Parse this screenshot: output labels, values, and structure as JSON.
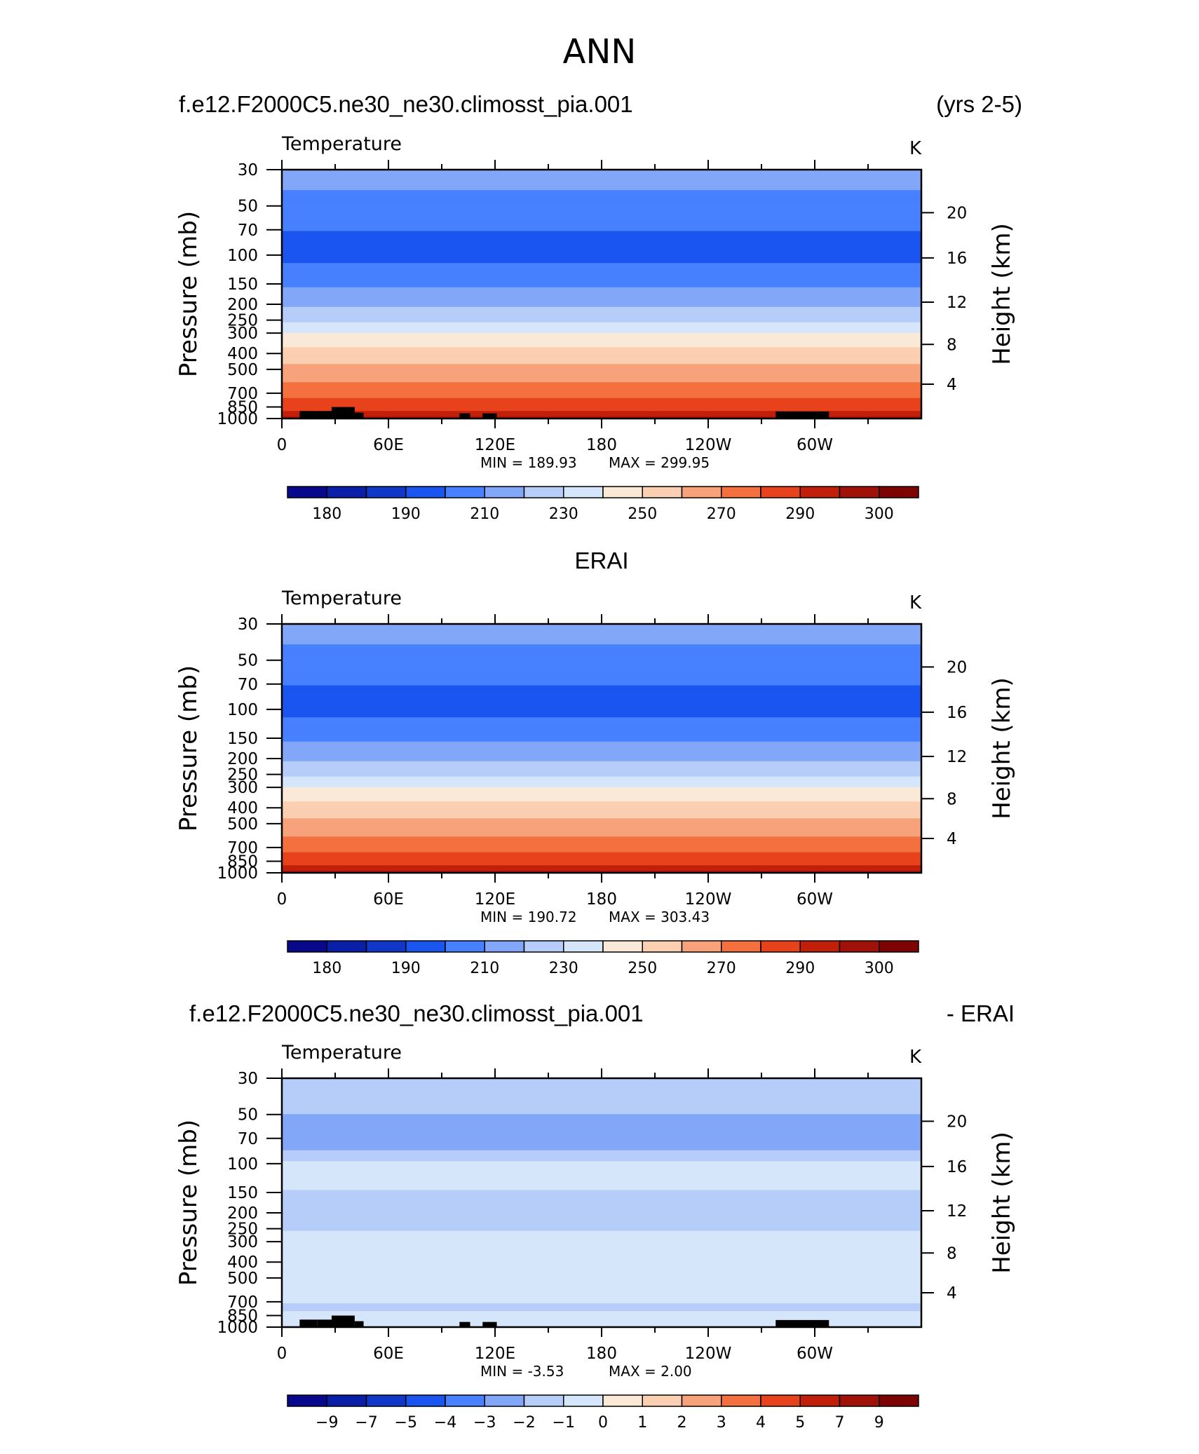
{
  "figure": {
    "title": "ANN",
    "caseName": "f.e12.F2000C5.ne30_ne30.climosst_pia.001",
    "yearsLabel": "(yrs 2-5)",
    "obsName": "ERAI",
    "diffCaseName": "f.e12.F2000C5.ne30_ne30.climosst_pia.001",
    "diffSuffix": "- ERAI"
  },
  "chart_data": [
    {
      "id": "model",
      "type": "heatmap",
      "title": "Temperature",
      "units": "K",
      "ylabel": "Pressure (mb)",
      "y2label": "Height (km)",
      "x_ticks": [
        "0",
        "60E",
        "120E",
        "180",
        "120W",
        "60W"
      ],
      "x_tick_values": [
        0,
        60,
        120,
        180,
        240,
        300
      ],
      "x_range": [
        0,
        360
      ],
      "y_ticks": [
        30,
        50,
        70,
        100,
        150,
        200,
        250,
        300,
        400,
        500,
        700,
        850,
        1000
      ],
      "y_range": [
        30,
        1000
      ],
      "y2_ticks": [
        20,
        16,
        12,
        8,
        4
      ],
      "y2_tick_pressures": [
        55,
        104,
        194,
        352,
        616
      ],
      "min_label": "MIN = 189.93",
      "max_label": "MAX = 299.95",
      "colorbar_labels": [
        "180",
        "190",
        "210",
        "230",
        "250",
        "270",
        "290",
        "300"
      ],
      "field_pressures": [
        30,
        40,
        55,
        75,
        100,
        125,
        150,
        200,
        250,
        300,
        350,
        400,
        500,
        600,
        700,
        775,
        850,
        925,
        1000
      ],
      "field_values": [
        215,
        210,
        203,
        199,
        198,
        202,
        208,
        218,
        229,
        240,
        248,
        255,
        263,
        270,
        277,
        282,
        287,
        292,
        296
      ],
      "topography": [
        [
          10,
          20,
          900
        ],
        [
          20,
          30,
          900
        ],
        [
          28,
          41,
          850
        ],
        [
          41,
          46,
          920
        ],
        [
          100,
          106,
          930
        ],
        [
          113,
          121,
          930
        ],
        [
          278,
          308,
          905
        ]
      ]
    },
    {
      "id": "obs",
      "type": "heatmap",
      "title": "Temperature",
      "units": "K",
      "ylabel": "Pressure (mb)",
      "y2label": "Height (km)",
      "x_ticks": [
        "0",
        "60E",
        "120E",
        "180",
        "120W",
        "60W"
      ],
      "x_tick_values": [
        0,
        60,
        120,
        180,
        240,
        300
      ],
      "x_range": [
        0,
        360
      ],
      "y_ticks": [
        30,
        50,
        70,
        100,
        150,
        200,
        250,
        300,
        400,
        500,
        700,
        850,
        1000
      ],
      "y_range": [
        30,
        1000
      ],
      "y2_ticks": [
        20,
        16,
        12,
        8,
        4
      ],
      "y2_tick_pressures": [
        55,
        104,
        194,
        352,
        616
      ],
      "min_label": "MIN = 190.72",
      "max_label": "MAX = 303.43",
      "colorbar_labels": [
        "180",
        "190",
        "210",
        "230",
        "250",
        "270",
        "290",
        "300"
      ],
      "field_pressures": [
        30,
        40,
        55,
        75,
        100,
        125,
        150,
        200,
        250,
        300,
        350,
        400,
        500,
        600,
        700,
        775,
        850,
        925,
        1000
      ],
      "field_values": [
        215,
        210,
        203,
        199,
        198,
        202,
        208,
        218,
        229,
        240,
        248,
        255,
        263,
        270,
        277,
        282,
        287,
        292,
        297
      ],
      "topography": []
    },
    {
      "id": "diff",
      "type": "heatmap",
      "title": "Temperature",
      "units": "K",
      "ylabel": "Pressure (mb)",
      "y2label": "Height (km)",
      "x_ticks": [
        "0",
        "60E",
        "120E",
        "180",
        "120W",
        "60W"
      ],
      "x_tick_values": [
        0,
        60,
        120,
        180,
        240,
        300
      ],
      "x_range": [
        0,
        360
      ],
      "y_ticks": [
        30,
        50,
        70,
        100,
        150,
        200,
        250,
        300,
        400,
        500,
        700,
        850,
        1000
      ],
      "y_range": [
        30,
        1000
      ],
      "y2_ticks": [
        20,
        16,
        12,
        8,
        4
      ],
      "y2_tick_pressures": [
        55,
        104,
        194,
        352,
        616
      ],
      "min_label": "MIN = -3.53",
      "max_label": "MAX = 2.00",
      "colorbar_labels": [
        "−9",
        "−7",
        "−5",
        "−4",
        "−3",
        "−2",
        "−1",
        "0",
        "1",
        "2",
        "3",
        "4",
        "5",
        "7",
        "9"
      ],
      "field_pressures": [
        30,
        45,
        55,
        70,
        90,
        100,
        130,
        180,
        250,
        300,
        400,
        500,
        650,
        750,
        850,
        950,
        1000
      ],
      "field_values": [
        -1.2,
        -1.6,
        -2.5,
        -2.6,
        -1.6,
        -0.7,
        -0.8,
        -1.3,
        -1.1,
        -0.5,
        -0.4,
        -0.5,
        -0.6,
        -1.2,
        -0.8,
        -0.4,
        -0.2
      ],
      "topography": [
        [
          10,
          20,
          900
        ],
        [
          20,
          30,
          900
        ],
        [
          28,
          41,
          850
        ],
        [
          41,
          46,
          920
        ],
        [
          100,
          106,
          930
        ],
        [
          113,
          121,
          930
        ],
        [
          278,
          308,
          905
        ]
      ]
    }
  ],
  "colormaps": {
    "temperature": {
      "levels": [
        180,
        185,
        190,
        200,
        210,
        220,
        230,
        240,
        250,
        260,
        270,
        280,
        290,
        295,
        300
      ],
      "colors": [
        "#08088c",
        "#0a1fa8",
        "#0f37c8",
        "#1a55f0",
        "#4781ff",
        "#82a7f8",
        "#b6cdfa",
        "#d6e6fa",
        "#fbe9d8",
        "#fbcfb1",
        "#f7a27a",
        "#f4703f",
        "#e8421d",
        "#c21f0b",
        "#a01208",
        "#7e0303"
      ]
    },
    "difference": {
      "levels": [
        -9,
        -7,
        -5,
        -4,
        -3,
        -2,
        -1,
        0,
        1,
        2,
        3,
        4,
        5,
        7,
        9
      ],
      "colors": [
        "#08088c",
        "#0a1fa8",
        "#0f37c8",
        "#1a55f0",
        "#4781ff",
        "#82a7f8",
        "#b6cdfa",
        "#d6e6fa",
        "#fbe9d8",
        "#fbcfb1",
        "#f7a27a",
        "#f4703f",
        "#e8421d",
        "#c21f0b",
        "#a01208",
        "#7e0303"
      ]
    }
  }
}
